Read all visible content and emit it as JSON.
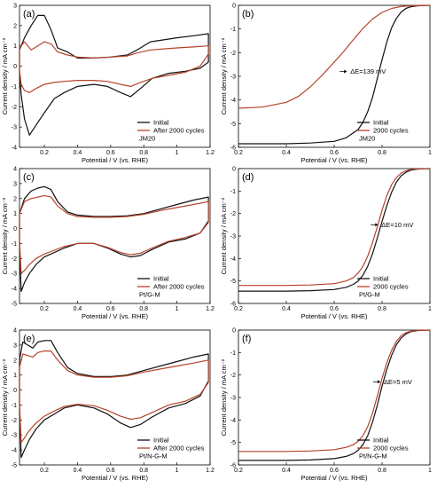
{
  "colors": {
    "initial": "#111111",
    "after": "#b5432a",
    "axis": "#000000"
  },
  "chart_data": [
    {
      "id": "a",
      "type": "line",
      "panel_label": "(a)",
      "xlabel": "Potential / V (vs. RHE)",
      "ylabel": "Current density / mA cm⁻²",
      "xlim": [
        0.05,
        1.2
      ],
      "ylim": [
        -4,
        3
      ],
      "xticks": [
        0.2,
        0.4,
        0.6,
        0.8,
        1.0,
        1.2
      ],
      "yticks": [
        -4,
        -3,
        -2,
        -1,
        0,
        1,
        2,
        3
      ],
      "legend_position": "bottom-right",
      "sample_label": "JM20",
      "series": [
        {
          "name": "Initial",
          "color": "#111111",
          "closed": true,
          "x": [
            0.05,
            0.08,
            0.12,
            0.16,
            0.2,
            0.24,
            0.28,
            0.34,
            0.4,
            0.5,
            0.6,
            0.7,
            0.76,
            0.84,
            0.92,
            1.0,
            1.1,
            1.19,
            1.19,
            1.14,
            1.05,
            0.95,
            0.85,
            0.78,
            0.72,
            0.66,
            0.58,
            0.5,
            0.4,
            0.32,
            0.26,
            0.2,
            0.15,
            0.11,
            0.08,
            0.06,
            0.05
          ],
          "y": [
            0.8,
            1.4,
            2.0,
            2.5,
            2.5,
            1.8,
            0.9,
            0.7,
            0.4,
            0.4,
            0.45,
            0.55,
            0.8,
            1.2,
            1.3,
            1.4,
            1.5,
            1.6,
            0.2,
            -0.1,
            -0.25,
            -0.35,
            -0.6,
            -1.1,
            -1.5,
            -1.3,
            -1.0,
            -0.9,
            -1.0,
            -1.3,
            -1.6,
            -2.3,
            -2.9,
            -3.4,
            -2.6,
            -1.4,
            -0.3
          ]
        },
        {
          "name": "After 2000 cycles",
          "color": "#b5432a",
          "closed": true,
          "x": [
            0.05,
            0.08,
            0.12,
            0.16,
            0.2,
            0.24,
            0.28,
            0.34,
            0.4,
            0.5,
            0.6,
            0.7,
            0.76,
            0.84,
            0.92,
            1.0,
            1.1,
            1.19,
            1.19,
            1.14,
            1.05,
            0.95,
            0.85,
            0.78,
            0.72,
            0.66,
            0.58,
            0.5,
            0.4,
            0.32,
            0.26,
            0.2,
            0.15,
            0.11,
            0.08,
            0.06,
            0.05
          ],
          "y": [
            0.9,
            1.2,
            0.8,
            1.0,
            1.2,
            1.1,
            0.7,
            0.55,
            0.45,
            0.4,
            0.45,
            0.5,
            0.65,
            0.8,
            0.85,
            0.9,
            0.95,
            1.0,
            0.6,
            0.0,
            -0.3,
            -0.45,
            -0.6,
            -0.8,
            -1.0,
            -0.9,
            -0.75,
            -0.7,
            -0.7,
            -0.75,
            -0.8,
            -0.9,
            -1.1,
            -1.3,
            -1.2,
            -0.9,
            -0.2
          ]
        }
      ]
    },
    {
      "id": "b",
      "type": "line",
      "panel_label": "(b)",
      "xlabel": "Potential / V (vs. RHE)",
      "ylabel": "Current density / mA cm⁻²",
      "xlim": [
        0.2,
        1.0
      ],
      "ylim": [
        -6,
        0
      ],
      "xticks": [
        0.2,
        0.4,
        0.6,
        0.8,
        1.0
      ],
      "yticks": [
        -6,
        -5,
        -4,
        -3,
        -2,
        -1,
        0
      ],
      "legend_position": "bottom-right",
      "sample_label": "JM20",
      "annotation": "ΔE=139 mV",
      "annotation_at": [
        0.66,
        -2.8
      ],
      "series": [
        {
          "name": "Initial",
          "color": "#111111",
          "x": [
            0.2,
            0.4,
            0.5,
            0.6,
            0.65,
            0.7,
            0.72,
            0.74,
            0.76,
            0.78,
            0.8,
            0.82,
            0.84,
            0.86,
            0.88,
            0.9,
            0.92,
            0.95,
            1.0
          ],
          "y": [
            -5.85,
            -5.85,
            -5.82,
            -5.75,
            -5.6,
            -5.25,
            -4.95,
            -4.5,
            -3.9,
            -3.1,
            -2.3,
            -1.55,
            -0.95,
            -0.55,
            -0.28,
            -0.13,
            -0.06,
            -0.02,
            0
          ]
        },
        {
          "name": "2000 cycles",
          "color": "#b5432a",
          "x": [
            0.2,
            0.3,
            0.4,
            0.45,
            0.5,
            0.55,
            0.6,
            0.64,
            0.68,
            0.72,
            0.76,
            0.8,
            0.84,
            0.88,
            0.92,
            1.0
          ],
          "y": [
            -4.35,
            -4.3,
            -4.1,
            -3.85,
            -3.45,
            -2.95,
            -2.4,
            -1.95,
            -1.45,
            -0.98,
            -0.58,
            -0.3,
            -0.13,
            -0.05,
            -0.02,
            0
          ]
        }
      ]
    },
    {
      "id": "c",
      "type": "line",
      "panel_label": "(c)",
      "xlabel": "Potential / V (vs. RHE)",
      "ylabel": "Current density / mA cm⁻²",
      "xlim": [
        0.05,
        1.2
      ],
      "ylim": [
        -5,
        4
      ],
      "xticks": [
        0.2,
        0.4,
        0.6,
        0.8,
        1.0,
        1.2
      ],
      "yticks": [
        -5,
        -4,
        -3,
        -2,
        -1,
        0,
        1,
        2,
        3,
        4
      ],
      "legend_position": "bottom-right",
      "sample_label": "Pt/G-M",
      "series": [
        {
          "name": "Initial",
          "color": "#111111",
          "closed": true,
          "x": [
            0.05,
            0.08,
            0.12,
            0.16,
            0.2,
            0.24,
            0.28,
            0.34,
            0.4,
            0.5,
            0.6,
            0.7,
            0.8,
            0.9,
            1.0,
            1.1,
            1.19,
            1.19,
            1.14,
            1.05,
            0.95,
            0.85,
            0.78,
            0.72,
            0.66,
            0.58,
            0.5,
            0.4,
            0.32,
            0.26,
            0.2,
            0.15,
            0.11,
            0.08,
            0.06,
            0.05
          ],
          "y": [
            1.0,
            2.0,
            2.5,
            2.7,
            2.8,
            2.6,
            1.8,
            1.1,
            0.9,
            0.8,
            0.8,
            0.85,
            1.0,
            1.3,
            1.6,
            1.9,
            2.1,
            0.5,
            -0.3,
            -0.7,
            -0.9,
            -1.4,
            -1.8,
            -1.9,
            -1.7,
            -1.3,
            -1.0,
            -1.0,
            -1.3,
            -1.6,
            -1.9,
            -2.4,
            -3.0,
            -3.6,
            -4.2,
            -1.0
          ]
        },
        {
          "name": "After 2000 cycles",
          "color": "#b5432a",
          "closed": true,
          "x": [
            0.05,
            0.08,
            0.12,
            0.16,
            0.2,
            0.24,
            0.28,
            0.34,
            0.4,
            0.5,
            0.6,
            0.7,
            0.8,
            0.9,
            1.0,
            1.1,
            1.19,
            1.19,
            1.14,
            1.05,
            0.95,
            0.85,
            0.78,
            0.72,
            0.66,
            0.58,
            0.5,
            0.4,
            0.32,
            0.26,
            0.2,
            0.15,
            0.11,
            0.08,
            0.06,
            0.05
          ],
          "y": [
            1.0,
            1.8,
            2.0,
            2.1,
            2.2,
            2.1,
            1.5,
            1.0,
            0.8,
            0.75,
            0.75,
            0.8,
            0.95,
            1.2,
            1.4,
            1.6,
            1.8,
            0.4,
            -0.3,
            -0.6,
            -0.85,
            -1.3,
            -1.65,
            -1.75,
            -1.6,
            -1.25,
            -1.0,
            -1.0,
            -1.2,
            -1.45,
            -1.7,
            -2.0,
            -2.4,
            -2.8,
            -3.0,
            -0.8
          ]
        }
      ]
    },
    {
      "id": "d",
      "type": "line",
      "panel_label": "(d)",
      "xlabel": "Potential / V (vs. RHE)",
      "ylabel": "Current density / mA cm⁻²",
      "xlim": [
        0.2,
        1.0
      ],
      "ylim": [
        -6,
        0
      ],
      "xticks": [
        0.2,
        0.4,
        0.6,
        0.8,
        1.0
      ],
      "yticks": [
        -6,
        -5,
        -4,
        -3,
        -2,
        -1,
        0
      ],
      "legend_position": "bottom-right",
      "sample_label": "Pt/G-M",
      "annotation": "ΔE=10 mV",
      "annotation_at": [
        0.79,
        -2.5
      ],
      "series": [
        {
          "name": "Initial",
          "color": "#111111",
          "x": [
            0.2,
            0.4,
            0.5,
            0.6,
            0.65,
            0.68,
            0.7,
            0.72,
            0.74,
            0.76,
            0.78,
            0.8,
            0.82,
            0.84,
            0.86,
            0.88,
            0.9,
            0.92,
            0.95,
            1.0
          ],
          "y": [
            -5.45,
            -5.45,
            -5.43,
            -5.38,
            -5.28,
            -5.15,
            -5.0,
            -4.75,
            -4.35,
            -3.8,
            -3.1,
            -2.35,
            -1.65,
            -1.05,
            -0.6,
            -0.32,
            -0.16,
            -0.07,
            -0.02,
            0
          ]
        },
        {
          "name": "2000 cycles",
          "color": "#b5432a",
          "x": [
            0.2,
            0.4,
            0.5,
            0.6,
            0.65,
            0.68,
            0.7,
            0.72,
            0.74,
            0.76,
            0.78,
            0.8,
            0.82,
            0.84,
            0.86,
            0.88,
            0.9,
            0.92,
            0.95,
            1.0
          ],
          "y": [
            -5.2,
            -5.2,
            -5.18,
            -5.12,
            -5.0,
            -4.85,
            -4.65,
            -4.35,
            -3.9,
            -3.3,
            -2.6,
            -1.85,
            -1.2,
            -0.72,
            -0.4,
            -0.2,
            -0.1,
            -0.04,
            -0.01,
            0
          ]
        }
      ]
    },
    {
      "id": "e",
      "type": "line",
      "panel_label": "(e)",
      "xlabel": "Potential / V (vs. RHE)",
      "ylabel": "Current density / mA cm⁻²",
      "xlim": [
        0.05,
        1.2
      ],
      "ylim": [
        -5,
        4
      ],
      "xticks": [
        0.2,
        0.4,
        0.6,
        0.8,
        1.0,
        1.2
      ],
      "yticks": [
        -5,
        -4,
        -3,
        -2,
        -1,
        0,
        1,
        2,
        3,
        4
      ],
      "legend_position": "bottom-right",
      "sample_label": "Pt/N-G-M",
      "series": [
        {
          "name": "Initial",
          "color": "#111111",
          "closed": true,
          "x": [
            0.05,
            0.07,
            0.1,
            0.13,
            0.16,
            0.2,
            0.24,
            0.28,
            0.34,
            0.4,
            0.5,
            0.6,
            0.7,
            0.8,
            0.9,
            1.0,
            1.1,
            1.19,
            1.19,
            1.14,
            1.05,
            0.95,
            0.85,
            0.78,
            0.72,
            0.66,
            0.58,
            0.5,
            0.4,
            0.32,
            0.26,
            0.2,
            0.15,
            0.11,
            0.08,
            0.06,
            0.05
          ],
          "y": [
            2.0,
            3.2,
            3.0,
            2.8,
            3.2,
            3.3,
            3.3,
            2.5,
            1.5,
            1.1,
            0.9,
            0.9,
            1.0,
            1.3,
            1.6,
            1.9,
            2.2,
            2.4,
            0.6,
            -0.4,
            -0.9,
            -1.2,
            -1.8,
            -2.3,
            -2.5,
            -2.2,
            -1.6,
            -1.2,
            -1.0,
            -1.2,
            -1.6,
            -2.0,
            -2.6,
            -3.3,
            -4.0,
            -4.5,
            -1.0
          ]
        },
        {
          "name": "After 2000 cycles",
          "color": "#b5432a",
          "closed": true,
          "x": [
            0.05,
            0.07,
            0.1,
            0.13,
            0.16,
            0.2,
            0.24,
            0.28,
            0.34,
            0.4,
            0.5,
            0.6,
            0.7,
            0.8,
            0.9,
            1.0,
            1.1,
            1.19,
            1.19,
            1.14,
            1.05,
            0.95,
            0.85,
            0.78,
            0.72,
            0.66,
            0.58,
            0.5,
            0.4,
            0.32,
            0.26,
            0.2,
            0.15,
            0.11,
            0.08,
            0.06,
            0.05
          ],
          "y": [
            1.5,
            2.4,
            2.3,
            2.2,
            2.5,
            2.6,
            2.6,
            2.0,
            1.3,
            1.0,
            0.85,
            0.85,
            0.95,
            1.2,
            1.4,
            1.6,
            1.8,
            2.0,
            0.5,
            -0.3,
            -0.75,
            -1.0,
            -1.5,
            -1.85,
            -1.95,
            -1.75,
            -1.35,
            -1.05,
            -0.95,
            -1.1,
            -1.4,
            -1.75,
            -2.2,
            -2.7,
            -3.2,
            -3.5,
            -0.8
          ]
        }
      ]
    },
    {
      "id": "f",
      "type": "line",
      "panel_label": "(f)",
      "xlabel": "Potential / V (vs. RHE)",
      "ylabel": "Current density / mA cm⁻²",
      "xlim": [
        0.2,
        1.0
      ],
      "ylim": [
        -6,
        0
      ],
      "xticks": [
        0.2,
        0.4,
        0.6,
        0.8,
        1.0
      ],
      "yticks": [
        -6,
        -5,
        -4,
        -3,
        -2,
        -1,
        0
      ],
      "legend_position": "bottom-right",
      "sample_label": "Pt/N-G-M",
      "annotation": "ΔE=5 mV",
      "annotation_at": [
        0.8,
        -2.3
      ],
      "series": [
        {
          "name": "Initial",
          "color": "#111111",
          "x": [
            0.2,
            0.4,
            0.5,
            0.6,
            0.65,
            0.68,
            0.7,
            0.72,
            0.74,
            0.76,
            0.78,
            0.8,
            0.82,
            0.84,
            0.86,
            0.88,
            0.9,
            0.92,
            0.95,
            1.0
          ],
          "y": [
            -5.8,
            -5.8,
            -5.78,
            -5.72,
            -5.62,
            -5.5,
            -5.35,
            -5.1,
            -4.7,
            -4.1,
            -3.35,
            -2.5,
            -1.75,
            -1.12,
            -0.65,
            -0.35,
            -0.17,
            -0.07,
            -0.02,
            0
          ]
        },
        {
          "name": "2000 cycles",
          "color": "#b5432a",
          "x": [
            0.2,
            0.4,
            0.5,
            0.6,
            0.65,
            0.68,
            0.7,
            0.72,
            0.74,
            0.76,
            0.78,
            0.8,
            0.82,
            0.84,
            0.86,
            0.88,
            0.9,
            0.92,
            0.95,
            1.0
          ],
          "y": [
            -5.4,
            -5.4,
            -5.38,
            -5.32,
            -5.22,
            -5.1,
            -4.95,
            -4.7,
            -4.3,
            -3.7,
            -2.95,
            -2.15,
            -1.45,
            -0.9,
            -0.5,
            -0.25,
            -0.12,
            -0.05,
            -0.01,
            0
          ]
        }
      ]
    }
  ]
}
